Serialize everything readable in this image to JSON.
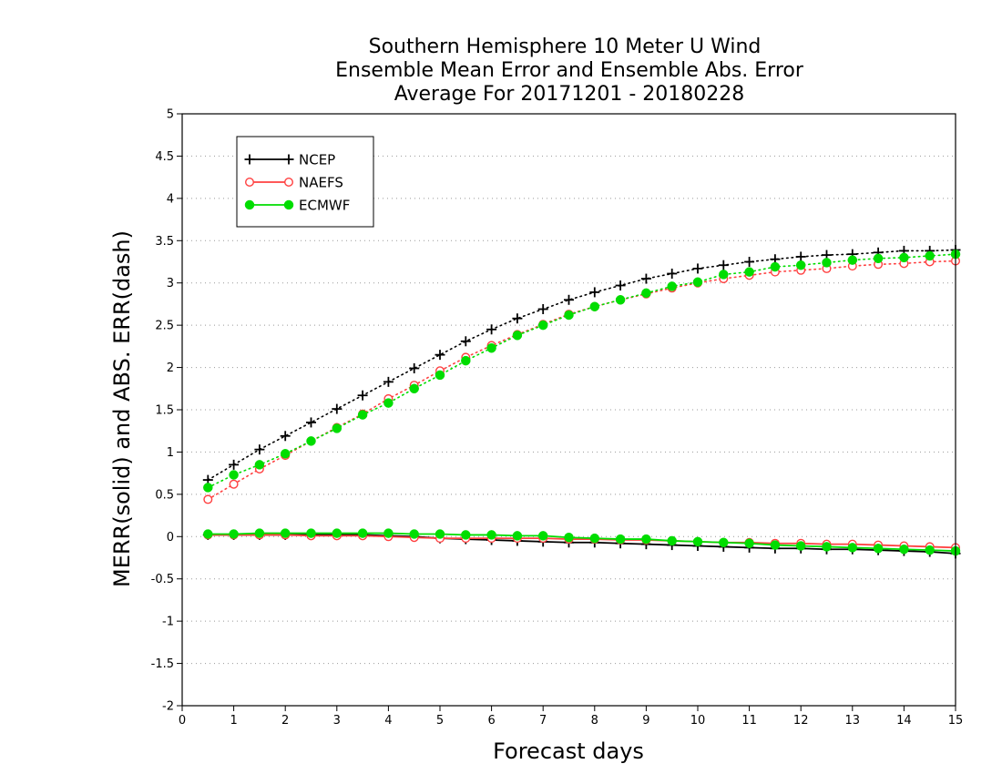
{
  "chart_data": {
    "type": "line",
    "title": [
      "Southern Hemisphere 10 Meter U Wind",
      "Ensemble Mean Error and Ensemble Abs. Error",
      "Average For 20171201 - 20180228"
    ],
    "xlabel": "Forecast days",
    "ylabel": "MERR(solid) and ABS. ERR(dash)",
    "xlim": [
      0,
      15
    ],
    "ylim": [
      -2,
      5
    ],
    "x_ticks": [
      "0",
      "1",
      "2",
      "3",
      "4",
      "5",
      "6",
      "7",
      "8",
      "9",
      "10",
      "11",
      "12",
      "13",
      "14",
      "15"
    ],
    "y_ticks": [
      "5",
      "4.5",
      "4",
      "3.5",
      "3",
      "2.5",
      "2",
      "1.5",
      "1",
      "0.5",
      "0",
      "-0.5",
      "-1",
      "-1.5",
      "-2"
    ],
    "grid": true,
    "legend": "top-left",
    "x": [
      0.5,
      1,
      1.5,
      2,
      2.5,
      3,
      3.5,
      4,
      4.5,
      5,
      5.5,
      6,
      6.5,
      7,
      7.5,
      8,
      8.5,
      9,
      9.5,
      10,
      10.5,
      11,
      11.5,
      12,
      12.5,
      13,
      13.5,
      14,
      14.5,
      15
    ],
    "series": [
      {
        "name": "NCEP",
        "color": "#000000",
        "marker": "plus",
        "abs_err": [
          0.67,
          0.85,
          1.03,
          1.19,
          1.35,
          1.51,
          1.67,
          1.83,
          1.99,
          2.15,
          2.31,
          2.45,
          2.58,
          2.69,
          2.8,
          2.89,
          2.97,
          3.05,
          3.11,
          3.17,
          3.21,
          3.25,
          3.28,
          3.31,
          3.33,
          3.34,
          3.36,
          3.38,
          3.38,
          3.39
        ],
        "mean_err": [
          0.02,
          0.02,
          0.02,
          0.02,
          0.02,
          0.02,
          0.02,
          0.01,
          0.0,
          -0.02,
          -0.03,
          -0.04,
          -0.05,
          -0.06,
          -0.07,
          -0.07,
          -0.08,
          -0.09,
          -0.1,
          -0.11,
          -0.12,
          -0.13,
          -0.14,
          -0.14,
          -0.15,
          -0.15,
          -0.16,
          -0.17,
          -0.18,
          -0.2
        ]
      },
      {
        "name": "NAEFS",
        "color": "#ff4040",
        "marker": "open-circle",
        "abs_err": [
          0.44,
          0.62,
          0.8,
          0.96,
          1.13,
          1.29,
          1.45,
          1.63,
          1.79,
          1.96,
          2.12,
          2.26,
          2.39,
          2.51,
          2.63,
          2.72,
          2.8,
          2.87,
          2.94,
          3.0,
          3.05,
          3.09,
          3.13,
          3.15,
          3.17,
          3.2,
          3.22,
          3.23,
          3.25,
          3.26
        ],
        "mean_err": [
          0.02,
          0.02,
          0.02,
          0.02,
          0.01,
          0.01,
          0.01,
          0.0,
          -0.01,
          -0.02,
          -0.02,
          -0.02,
          -0.02,
          -0.02,
          -0.03,
          -0.03,
          -0.04,
          -0.04,
          -0.05,
          -0.06,
          -0.07,
          -0.07,
          -0.08,
          -0.08,
          -0.09,
          -0.09,
          -0.1,
          -0.11,
          -0.12,
          -0.13
        ]
      },
      {
        "name": "ECMWF",
        "color": "#00dd00",
        "marker": "filled-circle",
        "abs_err": [
          0.58,
          0.73,
          0.85,
          0.98,
          1.13,
          1.28,
          1.44,
          1.58,
          1.75,
          1.91,
          2.08,
          2.23,
          2.38,
          2.5,
          2.62,
          2.72,
          2.8,
          2.88,
          2.96,
          3.01,
          3.1,
          3.13,
          3.19,
          3.21,
          3.24,
          3.27,
          3.29,
          3.3,
          3.32,
          3.34
        ],
        "mean_err": [
          0.03,
          0.03,
          0.04,
          0.04,
          0.04,
          0.04,
          0.04,
          0.04,
          0.03,
          0.03,
          0.02,
          0.02,
          0.01,
          0.01,
          -0.01,
          -0.02,
          -0.03,
          -0.03,
          -0.05,
          -0.06,
          -0.07,
          -0.08,
          -0.1,
          -0.11,
          -0.12,
          -0.13,
          -0.14,
          -0.15,
          -0.16,
          -0.17
        ]
      }
    ]
  }
}
